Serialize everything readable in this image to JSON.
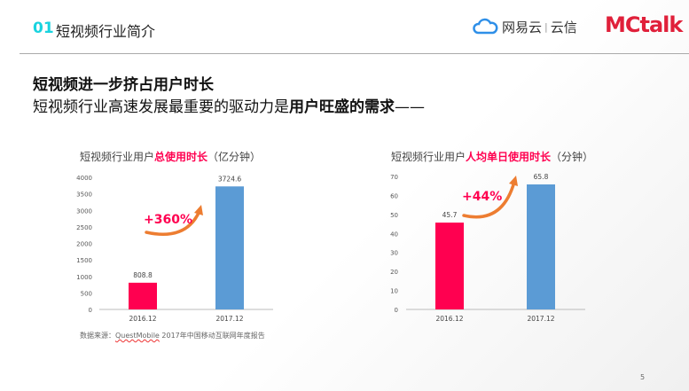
{
  "header": {
    "number": "01",
    "title": "短视频行业简介",
    "logo_netease": "网易云",
    "logo_sep": "|",
    "logo_yunxin": "云信",
    "logo_mctalk": "MCtalk"
  },
  "headline": "短视频进一步挤占用户时长",
  "subline": {
    "normal": "短视频行业高速发展最重要的驱动力是",
    "bold": "用户旺盛的需求",
    "dash": "——"
  },
  "chart_data": [
    {
      "type": "bar",
      "title_prefix": "短视频行业用户",
      "title_highlight": "总使用时长",
      "title_suffix": "（亿分钟）",
      "categories": [
        "2016.12",
        "2017.12"
      ],
      "values": [
        808.8,
        3724.6
      ],
      "value_labels": [
        "808.8",
        "3724.6"
      ],
      "ylim": [
        0,
        4000
      ],
      "yticks": [
        0,
        500,
        1000,
        1500,
        2000,
        2500,
        3000,
        3500,
        4000
      ],
      "colors": [
        "#ff0050",
        "#5b9bd5"
      ],
      "annotation": "+360%"
    },
    {
      "type": "bar",
      "title_prefix": "短视频行业用户",
      "title_highlight": "人均单日使用时长",
      "title_suffix": "（分钟）",
      "categories": [
        "2016.12",
        "2017.12"
      ],
      "values": [
        45.7,
        65.8
      ],
      "value_labels": [
        "45.7",
        "65.8"
      ],
      "ylim": [
        0,
        70
      ],
      "yticks": [
        0,
        10,
        20,
        30,
        40,
        50,
        60,
        70
      ],
      "colors": [
        "#ff0050",
        "#5b9bd5"
      ],
      "annotation": "+44%"
    }
  ],
  "source": {
    "prefix": "数据来源：",
    "brand": "QuestMobile",
    "suffix": " 2017年中国移动互联网年度报告"
  },
  "page_number": "5"
}
